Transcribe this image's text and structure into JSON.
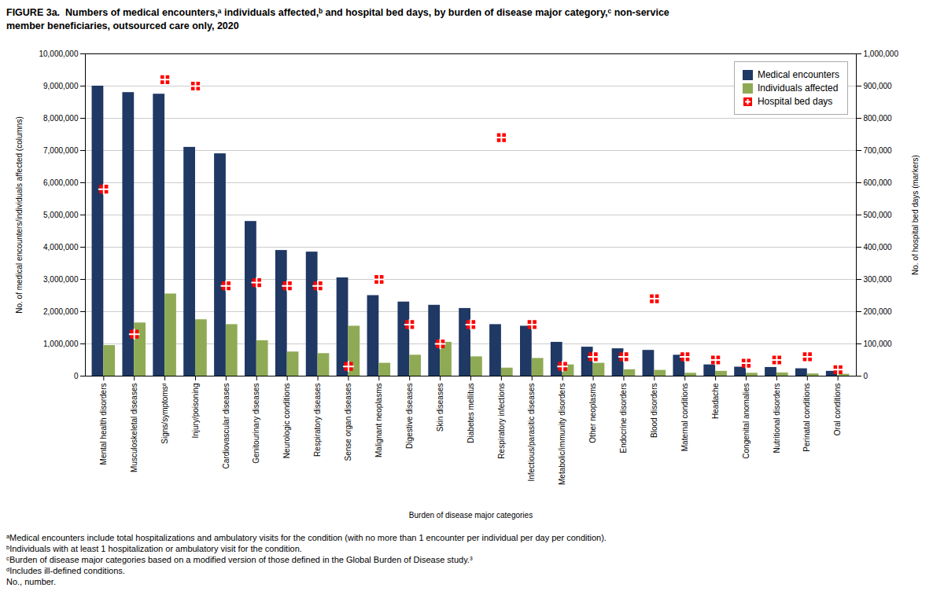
{
  "chart_data": {
    "type": "bar",
    "title": "FIGURE 3a.  Numbers of medical encounters,ᵃ individuals affected,ᵇ and hospital bed days, by burden of disease major category,ᶜ non-service\nmember beneficiaries, outsourced care only, 2020",
    "xlabel": "Burden of disease major categories",
    "ylabel": "No. of medical encounters/individuals affected (columns)",
    "y2label": "No. of hospital bed days (markers)",
    "categories": [
      "Mental health disorders",
      "Musculoskeletal diseases",
      "Signs/symptomsᵈ",
      "Injury/poisoning",
      "Cardiovascular diseases",
      "Genitourinary diseases",
      "Neurologic conditions",
      "Respiratory diseases",
      "Sense organ diseases",
      "Malignant neoplasms",
      "Digestive diseases",
      "Skin diseases",
      "Diabetes mellitus",
      "Respiratory infections",
      "Infectious/parasitic diseases",
      "Metabolic/immunity disorders",
      "Other neoplasms",
      "Endocrine disorders",
      "Blood disorders",
      "Maternal conditions",
      "Headache",
      "Congenital anomalies",
      "Nutritional disorders",
      "Perinatal conditions",
      "Oral conditions"
    ],
    "series": [
      {
        "name": "Medical encounters",
        "color": "#1f3864",
        "values": [
          9000000,
          8800000,
          8750000,
          7100000,
          6900000,
          4800000,
          3900000,
          3850000,
          3050000,
          2500000,
          2300000,
          2200000,
          2100000,
          1600000,
          1550000,
          1050000,
          900000,
          850000,
          800000,
          650000,
          350000,
          280000,
          270000,
          230000,
          150000
        ]
      },
      {
        "name": "Individuals affected",
        "color": "#8faa54",
        "values": [
          950000,
          1650000,
          2550000,
          1750000,
          1600000,
          1100000,
          750000,
          700000,
          1550000,
          400000,
          650000,
          1050000,
          600000,
          250000,
          550000,
          350000,
          400000,
          200000,
          180000,
          90000,
          150000,
          90000,
          100000,
          70000,
          60000
        ]
      },
      {
        "name": "Hospital bed days",
        "color": "#ff0000",
        "type": "scatter",
        "marker": "square",
        "axis": "y2",
        "values": [
          580000,
          130000,
          920000,
          900000,
          280000,
          290000,
          280000,
          280000,
          30000,
          300000,
          160000,
          100000,
          160000,
          740000,
          160000,
          30000,
          60000,
          60000,
          240000,
          60000,
          50000,
          40000,
          50000,
          60000,
          20000
        ]
      }
    ],
    "ylim": [
      0,
      10000000
    ],
    "yticks": [
      0,
      {
        "value": 1000000,
        "label": "1,000,000"
      },
      {
        "value": 2000000,
        "label": "2,000,000"
      },
      {
        "value": 3000000,
        "label": "3,000,000"
      },
      {
        "value": 4000000,
        "label": "4,000,000"
      },
      {
        "value": 5000000,
        "label": "5,000,000"
      },
      {
        "value": 6000000,
        "label": "6,000,000"
      },
      {
        "value": 7000000,
        "label": "7,000,000"
      },
      {
        "value": 8000000,
        "label": "8,000,000"
      },
      {
        "value": 9000000,
        "label": "9,000,000"
      },
      {
        "value": 10000000,
        "label": "10,000,000"
      }
    ],
    "y2lim": [
      0,
      1000000
    ],
    "y2ticks": [
      0,
      {
        "value": 100000,
        "label": "100,000"
      },
      {
        "value": 200000,
        "label": "200,000"
      },
      {
        "value": 300000,
        "label": "300,000"
      },
      {
        "value": 400000,
        "label": "400,000"
      },
      {
        "value": 500000,
        "label": "500,000"
      },
      {
        "value": 600000,
        "label": "600,000"
      },
      {
        "value": 700000,
        "label": "700,000"
      },
      {
        "value": 800000,
        "label": "800,000"
      },
      {
        "value": 900000,
        "label": "900,000"
      },
      {
        "value": 1000000,
        "label": "1,000,000"
      }
    ],
    "grid": true,
    "legend": "upper right",
    "annotations": [
      "ᵃMedical encounters include total hospitalizations and ambulatory visits for the condition (with no more than 1 encounter per individual per day per condition).",
      "ᵇIndividuals with at least 1 hospitalization or ambulatory visit for the condition.",
      "ᶜBurden of disease major categories based on a modified version of those defined in the Global Burden of Disease study.³",
      "ᵈIncludes ill-defined conditions.",
      "No., number."
    ]
  }
}
